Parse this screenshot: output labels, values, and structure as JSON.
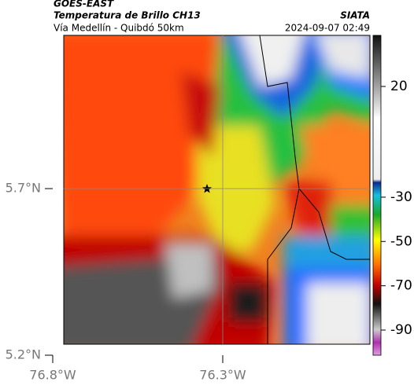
{
  "header": {
    "source": "GOES-EAST",
    "title": "Temperatura de Brillo CH13",
    "credit": "SIATA",
    "subtitle": "Vía Medellín - Quibdó 50km",
    "timestamp": "2024-09-07 02:49"
  },
  "map": {
    "yticks": [
      {
        "value": 5.2,
        "label": "5.2°N"
      },
      {
        "value": 5.7,
        "label": "5.7°N"
      }
    ],
    "xticks": [
      {
        "value": -76.8,
        "label": "76.8°W"
      },
      {
        "value": -76.3,
        "label": "76.3°W"
      }
    ]
  },
  "colorbar": {
    "ticks": [
      20,
      -30,
      -50,
      -70,
      -90
    ]
  }
}
